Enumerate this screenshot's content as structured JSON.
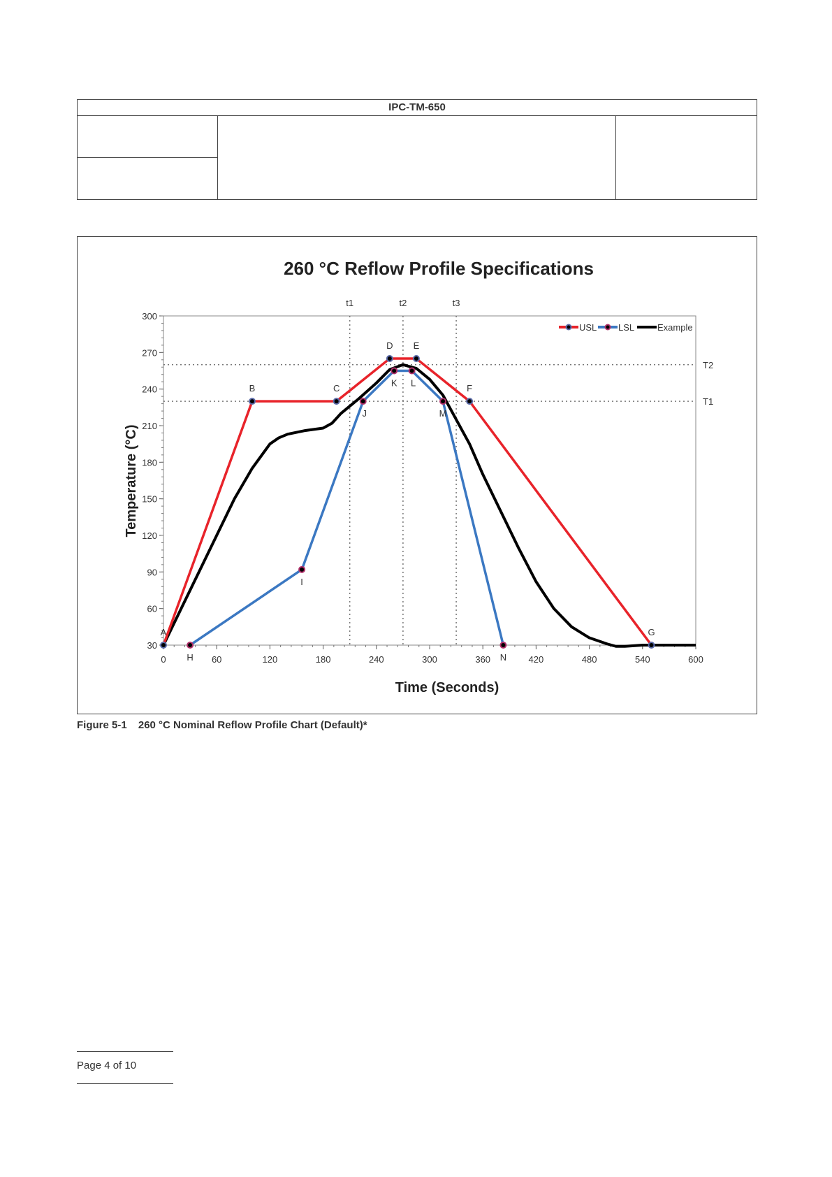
{
  "header": {
    "title": "IPC-TM-650"
  },
  "caption": {
    "number": "Figure 5-1",
    "text": "260 °C Nominal Reflow Profile Chart (Default)*"
  },
  "footer": {
    "page": "Page 4 of 10"
  },
  "colors": {
    "usl": "#e8232a",
    "lsl": "#3b78c2",
    "example": "#000000"
  },
  "chart_data": {
    "type": "line",
    "title": "260 °C Reflow Profile Specifications",
    "xlabel": "Time (Seconds)",
    "ylabel": "Temperature (°C)",
    "xlim": [
      0,
      600
    ],
    "ylim": [
      30,
      300
    ],
    "xticks": [
      0,
      60,
      120,
      180,
      240,
      300,
      360,
      420,
      480,
      540,
      600
    ],
    "yticks": [
      30,
      60,
      90,
      120,
      150,
      180,
      210,
      240,
      270,
      300
    ],
    "legend": {
      "placement": "top-right",
      "entries": [
        "USL",
        "LSL",
        "Example"
      ]
    },
    "ref_lines": {
      "vertical": [
        {
          "label": "t1",
          "x": 210
        },
        {
          "label": "t2",
          "x": 270
        },
        {
          "label": "t3",
          "x": 330
        }
      ],
      "horizontal": [
        {
          "label": "T2",
          "y": 260
        },
        {
          "label": "T1",
          "y": 230
        }
      ]
    },
    "series": [
      {
        "name": "USL",
        "points": [
          {
            "label": "A",
            "x": 0,
            "y": 30
          },
          {
            "label": "B",
            "x": 100,
            "y": 230
          },
          {
            "label": "C",
            "x": 195,
            "y": 230
          },
          {
            "label": "D",
            "x": 255,
            "y": 265
          },
          {
            "label": "E",
            "x": 285,
            "y": 265
          },
          {
            "label": "F",
            "x": 345,
            "y": 230
          },
          {
            "label": "G",
            "x": 550,
            "y": 30
          }
        ]
      },
      {
        "name": "LSL",
        "points": [
          {
            "label": "H",
            "x": 30,
            "y": 30
          },
          {
            "label": "I",
            "x": 156,
            "y": 92
          },
          {
            "label": "J",
            "x": 225,
            "y": 230
          },
          {
            "label": "K",
            "x": 260,
            "y": 255
          },
          {
            "label": "L",
            "x": 280,
            "y": 255
          },
          {
            "label": "M",
            "x": 315,
            "y": 230
          },
          {
            "label": "N",
            "x": 383,
            "y": 30
          }
        ]
      },
      {
        "name": "Example",
        "x": [
          0,
          20,
          40,
          60,
          80,
          100,
          120,
          130,
          140,
          160,
          180,
          190,
          200,
          220,
          240,
          255,
          270,
          285,
          300,
          315,
          330,
          345,
          360,
          380,
          400,
          420,
          440,
          460,
          480,
          500,
          510,
          520,
          540,
          600
        ],
        "y": [
          30,
          60,
          90,
          120,
          150,
          175,
          195,
          200,
          203,
          206,
          208,
          212,
          220,
          232,
          245,
          256,
          260,
          257,
          248,
          235,
          215,
          195,
          170,
          140,
          110,
          82,
          60,
          45,
          36,
          31,
          29,
          29,
          30,
          30
        ]
      }
    ]
  }
}
